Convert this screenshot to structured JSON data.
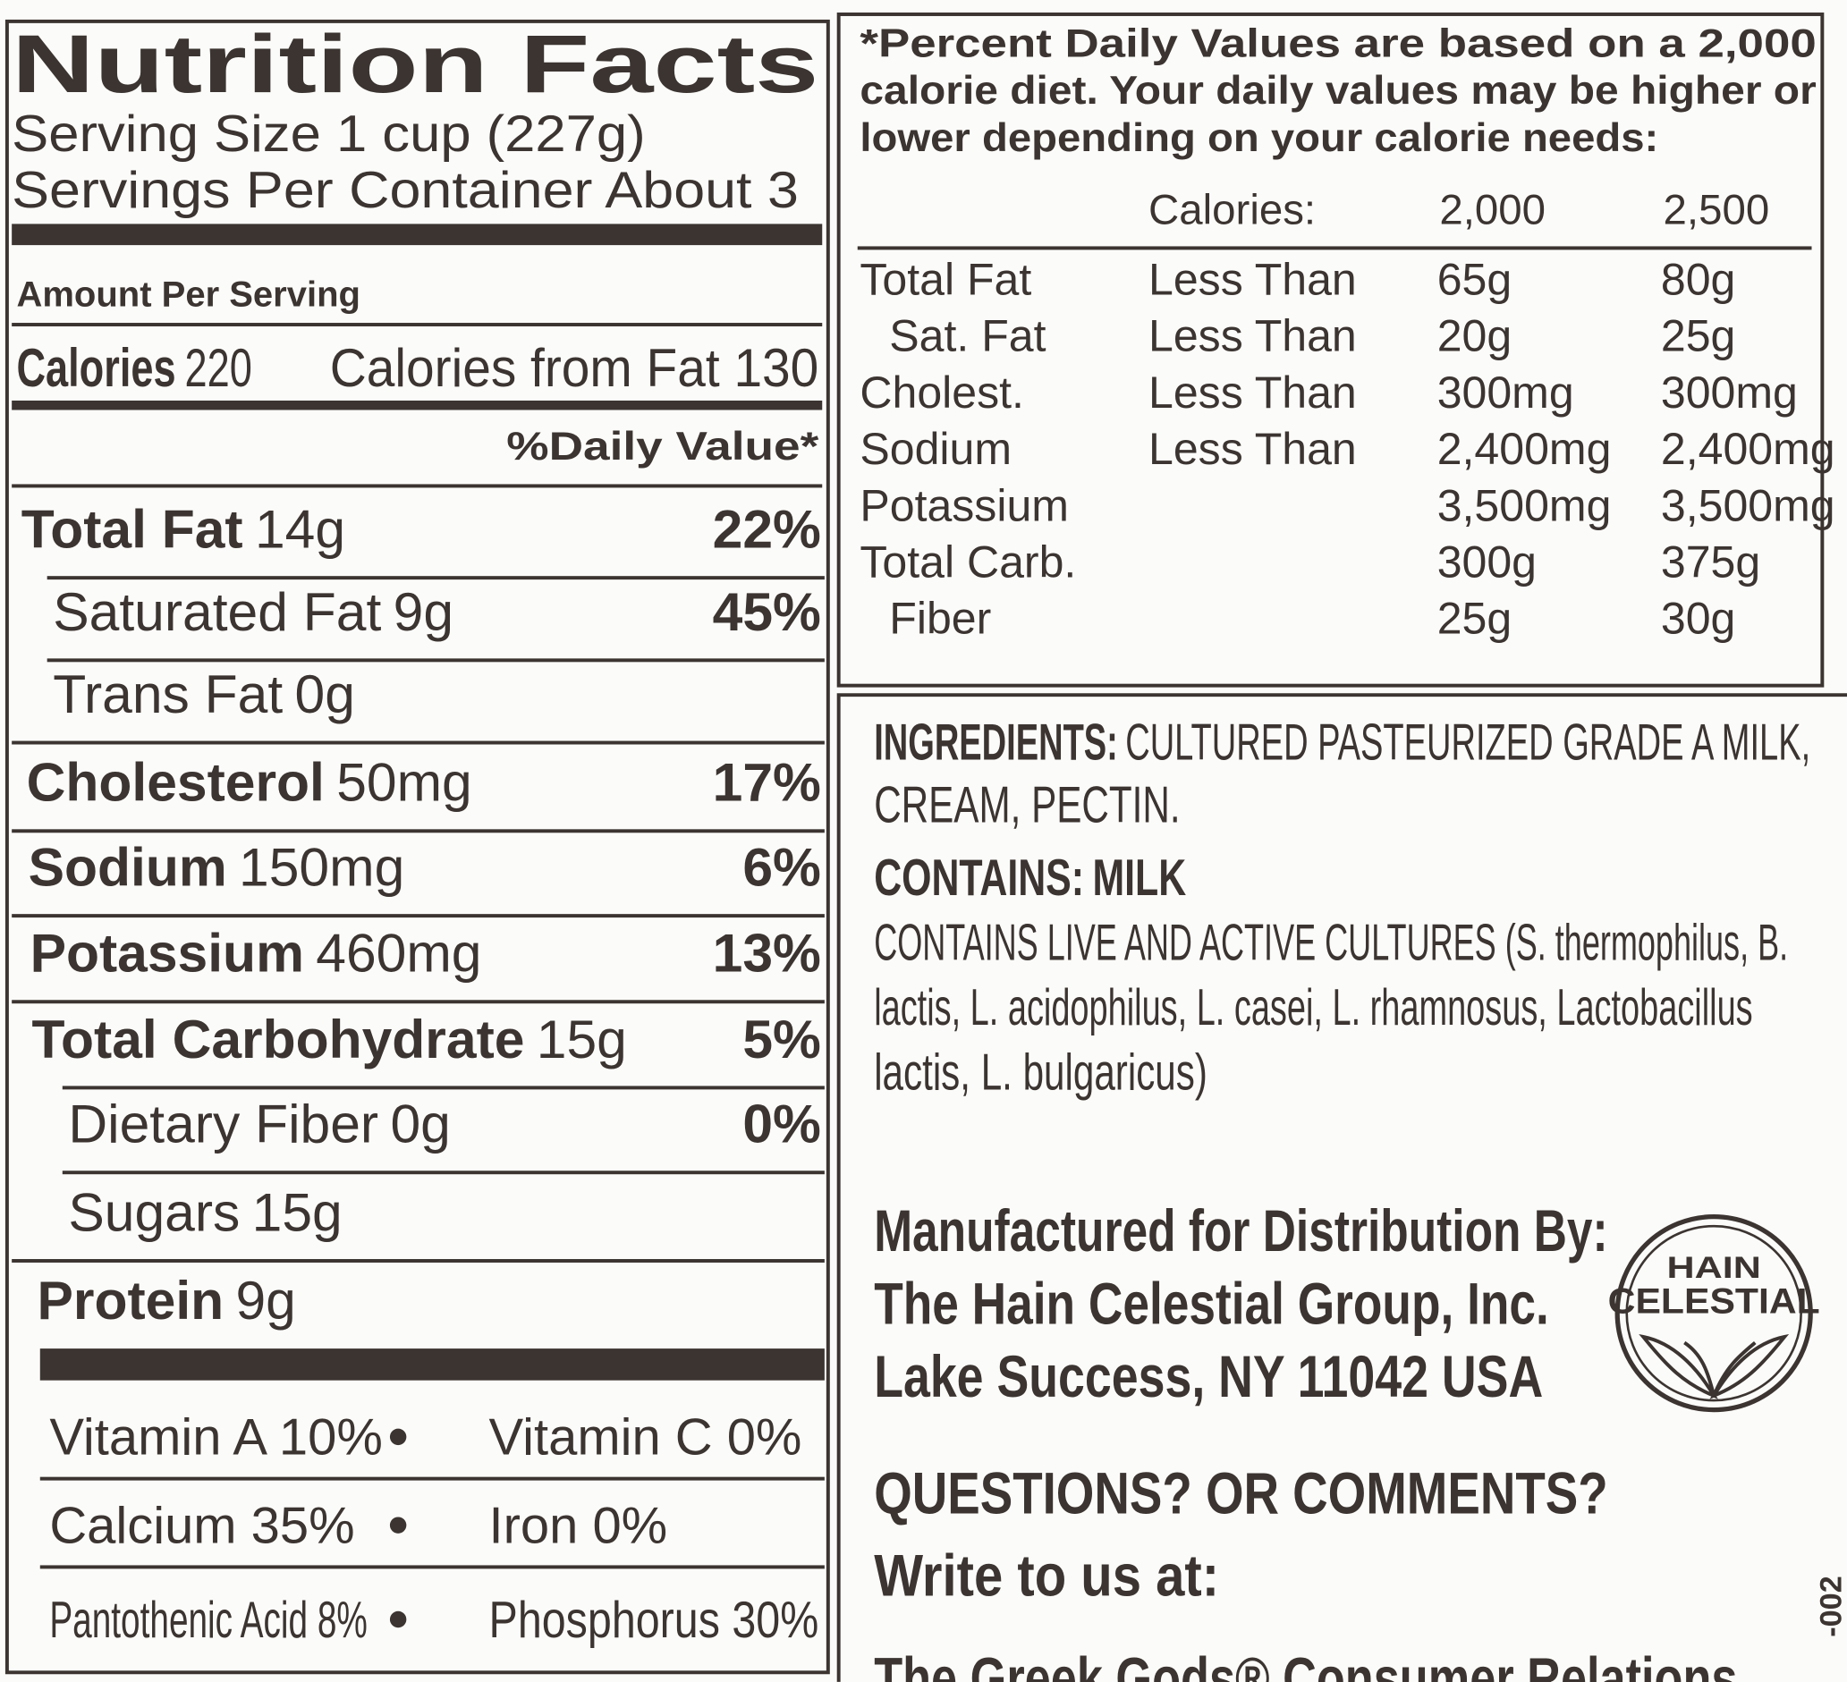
{
  "nutrition_facts": {
    "title": "Nutrition Facts",
    "serving_size": "Serving Size 1 cup (227g)",
    "servings_per_container": "Servings Per Container About 3",
    "amount_per_serving": "Amount Per Serving",
    "calories_label": "Calories",
    "calories_value": "220",
    "calories_from_fat": "Calories from Fat 130",
    "daily_value_header": "%Daily Value*",
    "nutrients": [
      {
        "label": "Total Fat",
        "amount": "14g",
        "percent": "22%"
      },
      {
        "label": "Saturated Fat",
        "amount": "9g",
        "percent": "45%"
      },
      {
        "label": "Trans Fat",
        "amount": "0g"
      },
      {
        "label": "Cholesterol",
        "amount": "50mg",
        "percent": "17%"
      },
      {
        "label": "Sodium",
        "amount": "150mg",
        "percent": "6%"
      },
      {
        "label": "Potassium",
        "amount": "460mg",
        "percent": "13%"
      },
      {
        "label": "Total Carbohydrate",
        "amount": "15g",
        "percent": "5%"
      },
      {
        "label": "Dietary Fiber",
        "amount": "0g",
        "percent": "0%"
      },
      {
        "label": "Sugars",
        "amount": "15g"
      },
      {
        "label": "Protein",
        "amount": "9g"
      }
    ],
    "vitamins": [
      [
        "Vitamin A 10%",
        "Vitamin C 0%"
      ],
      [
        "Calcium 35%",
        "Iron 0%"
      ],
      [
        "Pantothenic Acid 8%",
        "Phosphorus 30%"
      ]
    ]
  },
  "daily_values": {
    "note_lines": [
      "*Percent Daily Values are based on a 2,000",
      "calorie diet. Your daily values may be higher or",
      "lower depending on your calorie needs:"
    ],
    "header": [
      "Calories:",
      "2,000",
      "2,500"
    ],
    "rows": [
      [
        "Total Fat",
        "Less Than",
        "65g",
        "80g"
      ],
      [
        "Sat. Fat",
        "Less Than",
        "20g",
        "25g"
      ],
      [
        "Cholest.",
        "Less Than",
        "300mg",
        "300mg"
      ],
      [
        "Sodium",
        "Less Than",
        "2,400mg",
        "2,400mg"
      ],
      [
        "Potassium",
        "3,500mg",
        "3,500mg"
      ],
      [
        "Total Carb.",
        "300g",
        "375g"
      ],
      [
        "Fiber",
        "25g",
        "30g"
      ]
    ]
  },
  "ingredients": {
    "label": "INGREDIENTS:",
    "line1": "CULTURED PASTEURIZED GRADE A MILK,",
    "line2": "CREAM, PECTIN."
  },
  "contains": {
    "label": "CONTAINS:",
    "text": "MILK"
  },
  "cultures_lines": [
    "CONTAINS LIVE AND ACTIVE CULTURES (S. thermophilus, B.",
    "lactis, L. acidophilus, L. casei, L. rhamnosus, Lactobacillus",
    "lactis, L. bulgaricus)"
  ],
  "manufacturer_lines": [
    "Manufactured for Distribution By:",
    "The Hain Celestial Group, Inc.",
    "Lake Success, NY 11042 USA"
  ],
  "logo": {
    "line1": "HAIN",
    "line2": "CELESTIAL"
  },
  "questions": "QUESTIONS? OR COMMENTS?",
  "write_to_us": "Write to us at:",
  "consumer_relations": "The Greek Gods® Consumer Relations",
  "side_code": "-002"
}
